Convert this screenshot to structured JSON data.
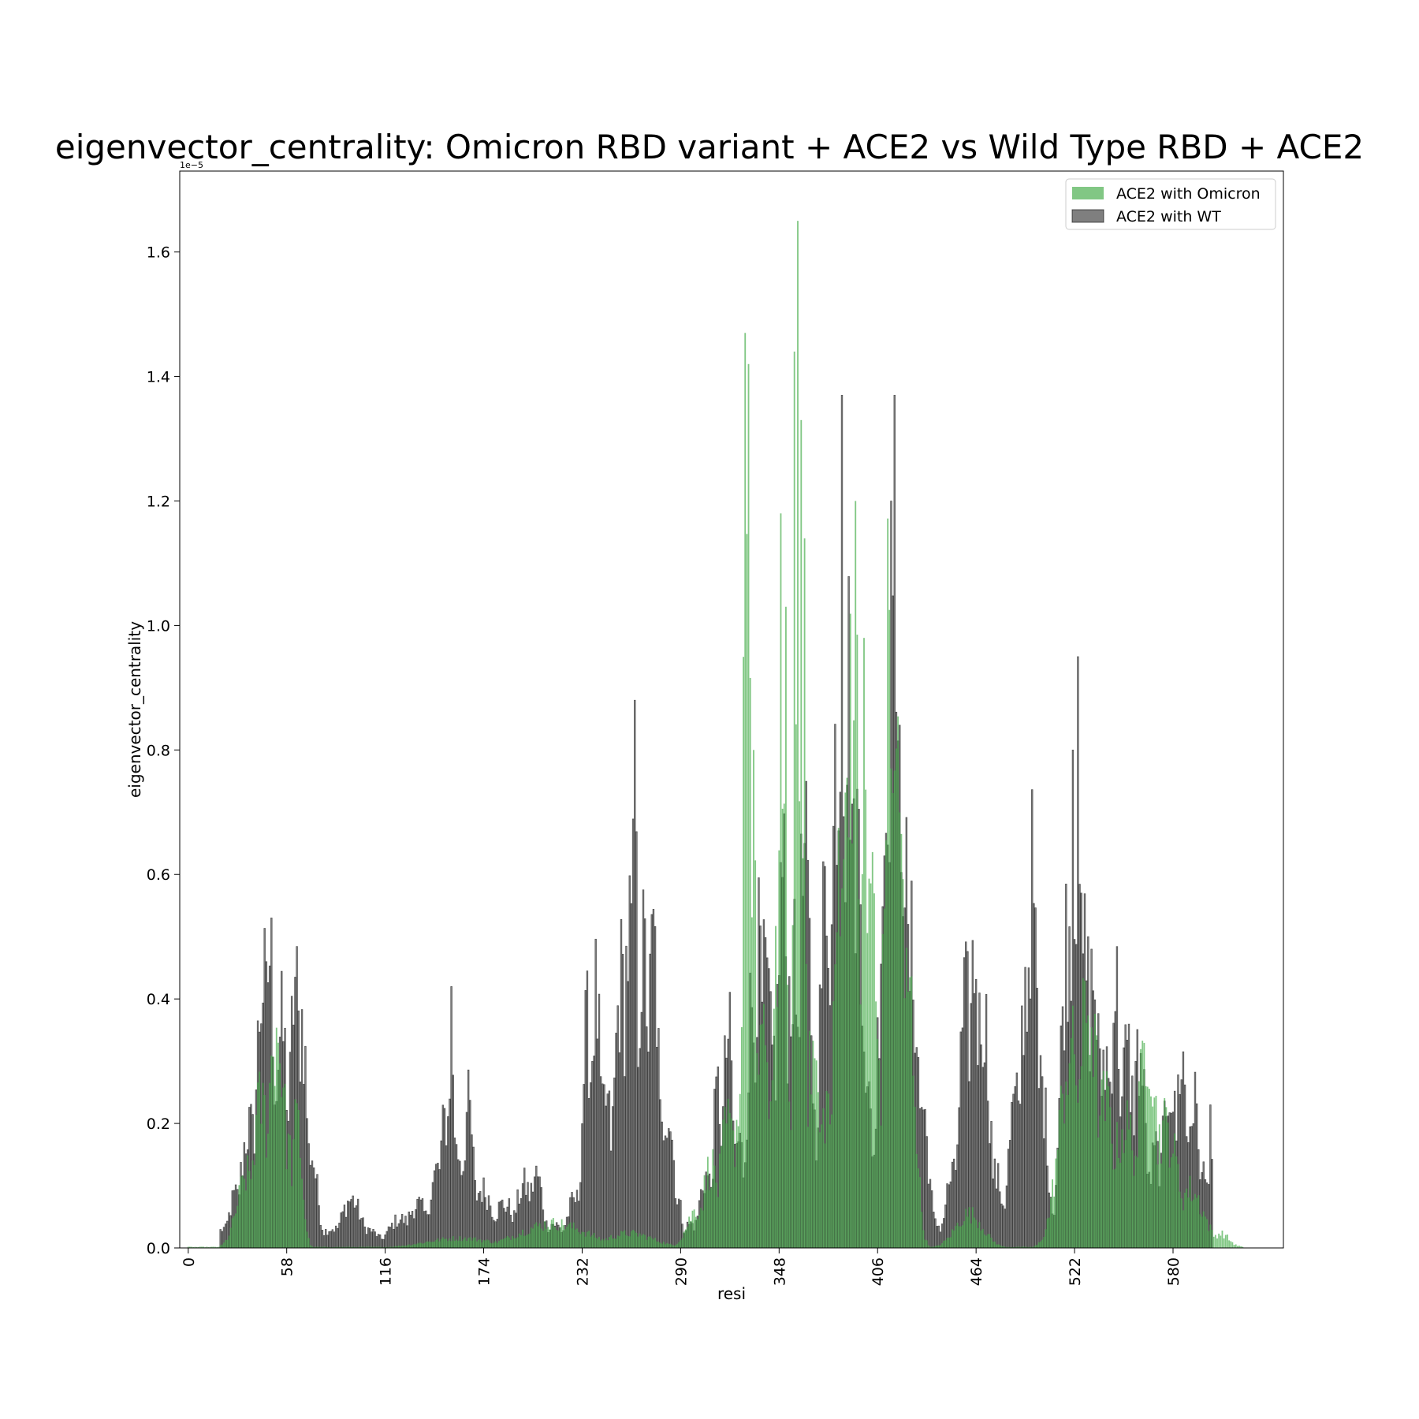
{
  "chart_data": {
    "type": "bar",
    "title": "eigenvector_centrality: Omicron RBD variant + ACE2 vs Wild Type RBD + ACE2",
    "xlabel": "resi",
    "ylabel": "eigenvector_centrality",
    "y_offset_label": "1e−5",
    "y_scale_note": "values in units of 1e-5",
    "x_tick_labels": [
      "0",
      "58",
      "116",
      "174",
      "232",
      "290",
      "348",
      "406",
      "464",
      "522",
      "580"
    ],
    "y_tick_labels": [
      "0.0",
      "0.2",
      "0.4",
      "0.6",
      "0.8",
      "1.0",
      "1.2",
      "1.4",
      "1.6"
    ],
    "xlim": [
      -5,
      645
    ],
    "ylim": [
      0,
      1.73
    ],
    "legend_position": "upper right",
    "grid": false,
    "series": [
      {
        "name": "ACE2 with Omicron",
        "color": "#4caf50",
        "opacity": 0.7,
        "resi_step": 1,
        "approximated": true,
        "peaks": [
          [
            35,
            0.15,
            6
          ],
          [
            43,
            0.3,
            5
          ],
          [
            52,
            0.45,
            5
          ],
          [
            58,
            0.22,
            4
          ],
          [
            64,
            0.26,
            3
          ],
          [
            160,
            0.02,
            20
          ],
          [
            215,
            0.05,
            20
          ],
          [
            260,
            0.03,
            14
          ],
          [
            300,
            0.08,
            6
          ],
          [
            308,
            0.17,
            5
          ],
          [
            318,
            0.25,
            5
          ],
          [
            325,
            0.3,
            4
          ],
          [
            328,
            1.47,
            1.5
          ],
          [
            330,
            1.42,
            1.5
          ],
          [
            333,
            0.8,
            1.5
          ],
          [
            338,
            0.5,
            3
          ],
          [
            348,
            0.7,
            4
          ],
          [
            349,
            1.18,
            1
          ],
          [
            352,
            1.03,
            1.2
          ],
          [
            357,
            1.44,
            1
          ],
          [
            359,
            1.65,
            1
          ],
          [
            361,
            1.33,
            1
          ],
          [
            363,
            1.14,
            1.2
          ],
          [
            368,
            0.4,
            4
          ],
          [
            376,
            0.3,
            4
          ],
          [
            385,
            0.9,
            4
          ],
          [
            390,
            1.24,
            3
          ],
          [
            393,
            1.2,
            2
          ],
          [
            398,
            0.98,
            2
          ],
          [
            402,
            0.8,
            3
          ],
          [
            406,
            0.42,
            3
          ],
          [
            413,
            1.27,
            3
          ],
          [
            418,
            1.06,
            3
          ],
          [
            424,
            0.55,
            4
          ],
          [
            460,
            0.07,
            8
          ],
          [
            520,
            0.4,
            7
          ],
          [
            530,
            0.5,
            6
          ],
          [
            540,
            0.3,
            6
          ],
          [
            552,
            0.25,
            8
          ],
          [
            565,
            0.45,
            5
          ],
          [
            575,
            0.25,
            8
          ],
          [
            590,
            0.12,
            8
          ],
          [
            608,
            0.03,
            5
          ],
          [
            617,
            0.005,
            3
          ]
        ],
        "range": [
          0,
          621
        ]
      },
      {
        "name": "ACE2 with WT",
        "color": "#000000",
        "opacity": 0.5,
        "resi_step": 1,
        "approximated": true,
        "peaks": [
          [
            21,
            0.04,
            4
          ],
          [
            28,
            0.11,
            4
          ],
          [
            36,
            0.25,
            5
          ],
          [
            44,
            0.55,
            4
          ],
          [
            48,
            0.61,
            3
          ],
          [
            55,
            0.45,
            4
          ],
          [
            63,
            0.55,
            3
          ],
          [
            67,
            0.47,
            3
          ],
          [
            72,
            0.2,
            4
          ],
          [
            85,
            0.04,
            8
          ],
          [
            96,
            0.1,
            6
          ],
          [
            104,
            0.04,
            8
          ],
          [
            125,
            0.06,
            7
          ],
          [
            135,
            0.09,
            6
          ],
          [
            147,
            0.16,
            5
          ],
          [
            152,
            0.27,
            4
          ],
          [
            155,
            0.42,
            2
          ],
          [
            159,
            0.2,
            4
          ],
          [
            165,
            0.29,
            3
          ],
          [
            173,
            0.12,
            7
          ],
          [
            186,
            0.09,
            7
          ],
          [
            198,
            0.13,
            5
          ],
          [
            205,
            0.15,
            4
          ],
          [
            215,
            0.05,
            6
          ],
          [
            228,
            0.1,
            5
          ],
          [
            235,
            0.45,
            3
          ],
          [
            240,
            0.52,
            3
          ],
          [
            246,
            0.3,
            4
          ],
          [
            255,
            0.55,
            4
          ],
          [
            260,
            0.65,
            4
          ],
          [
            263,
            0.88,
            1.5
          ],
          [
            268,
            0.6,
            4
          ],
          [
            274,
            0.63,
            3
          ],
          [
            282,
            0.3,
            4
          ],
          [
            288,
            0.1,
            3
          ],
          [
            296,
            0.05,
            5
          ],
          [
            305,
            0.15,
            4
          ],
          [
            312,
            0.32,
            3
          ],
          [
            318,
            0.44,
            3
          ],
          [
            324,
            0.22,
            4
          ],
          [
            332,
            0.5,
            3
          ],
          [
            336,
            0.6,
            3
          ],
          [
            340,
            0.55,
            4
          ],
          [
            345,
            0.4,
            4
          ],
          [
            350,
            0.77,
            3
          ],
          [
            356,
            0.58,
            4
          ],
          [
            363,
            0.78,
            4
          ],
          [
            368,
            0.2,
            4
          ],
          [
            376,
            0.75,
            4
          ],
          [
            382,
            1.05,
            3
          ],
          [
            385,
            1.37,
            1.5
          ],
          [
            389,
            1.16,
            3
          ],
          [
            394,
            0.85,
            4
          ],
          [
            400,
            0.3,
            4
          ],
          [
            405,
            0.2,
            4
          ],
          [
            411,
            0.9,
            4
          ],
          [
            414,
            1.2,
            2
          ],
          [
            416,
            1.37,
            1.5
          ],
          [
            420,
            0.95,
            4
          ],
          [
            426,
            0.6,
            4
          ],
          [
            432,
            0.3,
            4
          ],
          [
            440,
            0.05,
            5
          ],
          [
            450,
            0.15,
            4
          ],
          [
            458,
            0.5,
            4
          ],
          [
            463,
            0.6,
            3
          ],
          [
            468,
            0.5,
            4
          ],
          [
            475,
            0.15,
            5
          ],
          [
            487,
            0.3,
            4
          ],
          [
            493,
            0.55,
            3
          ],
          [
            497,
            0.75,
            3
          ],
          [
            502,
            0.35,
            4
          ],
          [
            512,
            0.08,
            6
          ],
          [
            518,
            0.65,
            4
          ],
          [
            521,
            0.8,
            2
          ],
          [
            524,
            0.95,
            2
          ],
          [
            528,
            0.6,
            4
          ],
          [
            533,
            0.55,
            4
          ],
          [
            540,
            0.4,
            4
          ],
          [
            546,
            0.55,
            3
          ],
          [
            553,
            0.4,
            4
          ],
          [
            560,
            0.4,
            4
          ],
          [
            570,
            0.2,
            4
          ],
          [
            578,
            0.35,
            4
          ],
          [
            585,
            0.4,
            3
          ],
          [
            592,
            0.3,
            4
          ],
          [
            598,
            0.15,
            3
          ],
          [
            602,
            0.23,
            1.5
          ]
        ],
        "range": [
          19,
          603
        ]
      }
    ]
  }
}
